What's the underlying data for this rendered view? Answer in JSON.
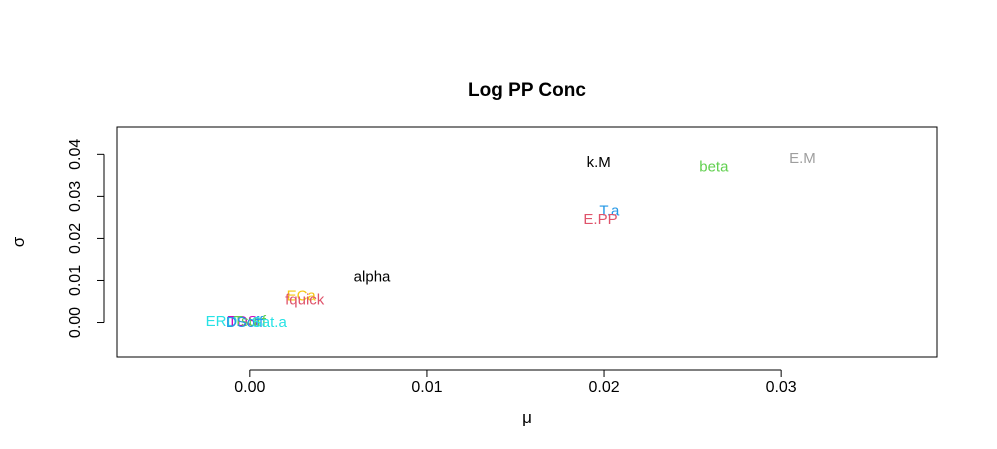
{
  "chart_data": {
    "type": "scatter",
    "title": "Log PP Conc",
    "xlabel": "μ",
    "ylabel": "σ",
    "xlim": [
      -0.0075,
      0.0388
    ],
    "ylim": [
      -0.0082,
      0.0465
    ],
    "xticks": [
      0.0,
      0.01,
      0.02,
      0.03
    ],
    "xtick_labels": [
      "0.00",
      "0.01",
      "0.02",
      "0.03"
    ],
    "yticks": [
      0.0,
      0.01,
      0.02,
      0.03,
      0.04
    ],
    "ytick_labels": [
      "0.00",
      "0.01",
      "0.02",
      "0.03",
      "0.04"
    ],
    "grid": false,
    "points": [
      {
        "label": "k.M",
        "x": 0.0197,
        "y": 0.038,
        "color": "#000000"
      },
      {
        "label": "beta",
        "x": 0.0262,
        "y": 0.037,
        "color": "#61D04F"
      },
      {
        "label": "E.M",
        "x": 0.0312,
        "y": 0.039,
        "color": "#9E9E9E"
      },
      {
        "label": "T.a",
        "x": 0.0203,
        "y": 0.0265,
        "color": "#2297E6"
      },
      {
        "label": "E.PP",
        "x": 0.0198,
        "y": 0.0245,
        "color": "#DF536B"
      },
      {
        "label": "alpha",
        "x": 0.0069,
        "y": 0.0108,
        "color": "#000000"
      },
      {
        "label": "ECa",
        "x": 0.0029,
        "y": 0.0063,
        "color": "#F5C710"
      },
      {
        "label": "fquick",
        "x": 0.0031,
        "y": 0.0053,
        "color": "#DF536B"
      },
      {
        "label": "ERD",
        "x": -0.0016,
        "y": 0.0002,
        "color": "#28E2E5"
      },
      {
        "label": "TDS",
        "x": -0.0004,
        "y": 0.0003,
        "color": "#CD0BBC"
      },
      {
        "label": "Tsurf",
        "x": 0.0,
        "y": 0.0002,
        "color": "#61D04F"
      },
      {
        "label": "DSoff",
        "x": -0.0003,
        "y": 0.0,
        "color": "#2297E6"
      },
      {
        "label": "Sat.a",
        "x": 0.0011,
        "y": 0.0,
        "color": "#28E2E5"
      }
    ]
  }
}
